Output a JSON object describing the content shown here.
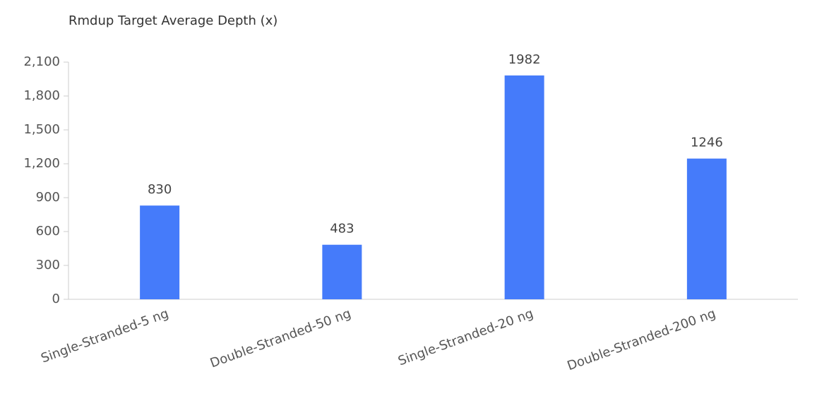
{
  "chart_data": {
    "type": "bar",
    "title": "Rmdup Target Average Depth (x)",
    "categories": [
      "Single-Stranded-5 ng",
      "Double-Stranded-50 ng",
      "Single-Stranded-20 ng",
      "Double-Stranded-200 ng"
    ],
    "values": [
      830,
      483,
      1982,
      1246
    ],
    "color": "#457bfa",
    "ylim": [
      0,
      2100
    ],
    "yticks": [
      0,
      300,
      600,
      900,
      {
        "value": 1200,
        "label": "1,200"
      },
      {
        "value": 1500,
        "label": "1,500"
      },
      {
        "value": 1800,
        "label": "1,800"
      },
      {
        "value": 2100,
        "label": "2,100"
      }
    ],
    "grid": false
  }
}
